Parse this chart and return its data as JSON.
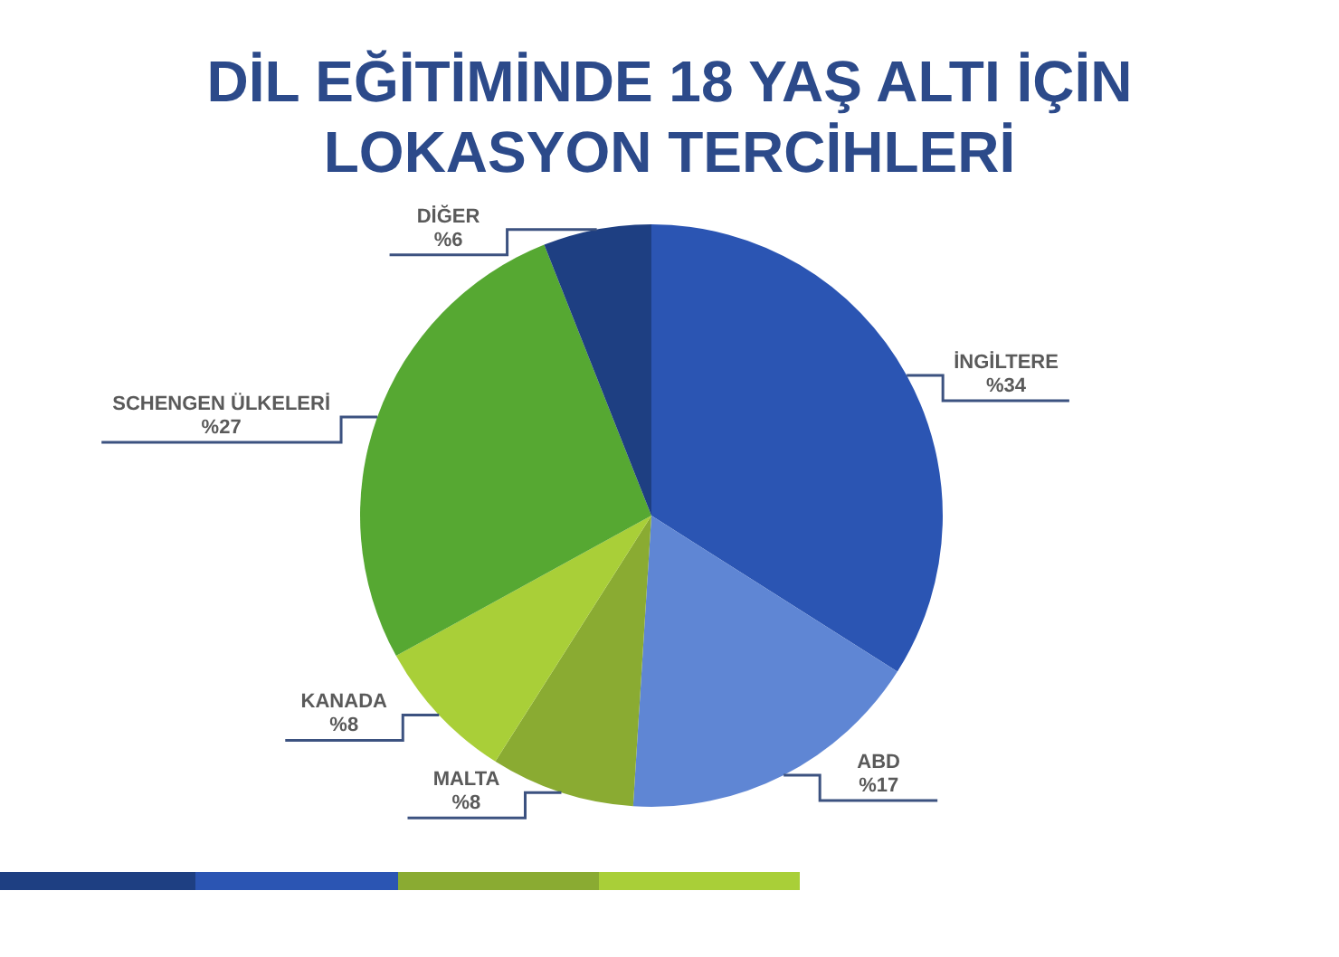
{
  "chart_data": {
    "type": "pie",
    "title": "DİL EĞİTİMİNDE 18 YAŞ ALTI İÇİN LOKASYON TERCİHLERİ",
    "categories": [
      "İNGİLTERE",
      "ABD",
      "MALTA",
      "KANADA",
      "SCHENGEN ÜLKELERİ",
      "DİĞER"
    ],
    "values": [
      34,
      17,
      8,
      8,
      27,
      6
    ],
    "colors": [
      "#2b55b3",
      "#5f86d4",
      "#8aab32",
      "#a9cf38",
      "#56a832",
      "#1e3f82"
    ],
    "value_labels": [
      "%34",
      "%17",
      "%8",
      "%8",
      "%27",
      "%6"
    ]
  }
}
